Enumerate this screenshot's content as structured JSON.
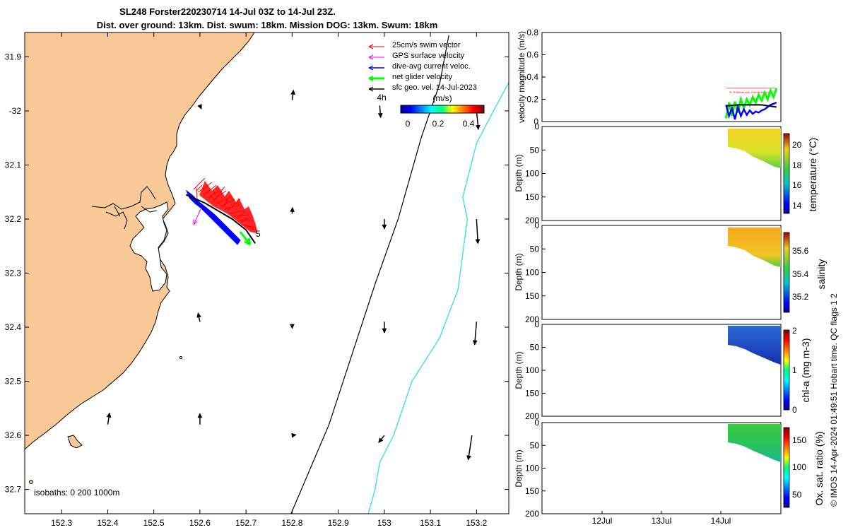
{
  "chart_data": [
    {
      "type": "map",
      "title_line1": "SL248 Forster220230714 14-Jul 03Z to 14-Jul 23Z.",
      "title_line2": "Dist. over ground: 13km. Dist. swum: 18km. Mission DOG: 13km. Swum: 18km",
      "xlim": [
        152.22,
        153.27
      ],
      "ylim": [
        -32.745,
        -31.855
      ],
      "x_ticks": [
        152.3,
        152.4,
        152.5,
        152.6,
        152.7,
        152.8,
        152.9,
        153,
        153.1,
        153.2
      ],
      "x_tick_labels": [
        "152.3",
        "152.4",
        "152.5",
        "152.6",
        "152.7",
        "152.8",
        "152.9",
        "153",
        "153.1",
        "153.2"
      ],
      "y_ticks": [
        -31.9,
        -32,
        -32.1,
        -32.2,
        -32.3,
        -32.4,
        -32.5,
        -32.6,
        -32.7
      ],
      "y_tick_labels": [
        "31.9",
        "-32",
        "32.1",
        "32.2",
        "32.3",
        "32.4",
        "32.5",
        "32.6",
        "32.7"
      ],
      "legend": {
        "placement": "top-right",
        "entries": [
          {
            "label": "25cm/s swim vector",
            "color": "#ff0000"
          },
          {
            "label": "GPS surface velocity",
            "color": "#ff00ff"
          },
          {
            "label": "dive-avg current veloc.",
            "color": "#0000ff"
          },
          {
            "label": "net glider velocity",
            "color": "#00ff00"
          },
          {
            "label": "sfc geo. vel. 14-Jul-2023",
            "color": "#000000"
          }
        ]
      },
      "colorbar": {
        "label": "(m/s)",
        "ticks": [
          0,
          0.2,
          0.4
        ],
        "tick_labels": [
          "0",
          "0.2",
          "0.4"
        ],
        "range": [
          -0.05,
          0.5
        ]
      },
      "time_marker": "4h",
      "end_marker": "5",
      "isobaths_label": "isobaths: 0   200  1000m",
      "isobath_200m": [
        [
          153.3,
          -31.9
        ],
        [
          153.24,
          -31.995
        ],
        [
          153.2,
          -32.06
        ],
        [
          153.17,
          -32.16
        ],
        [
          153.18,
          -32.2
        ],
        [
          153.16,
          -32.33
        ],
        [
          153.12,
          -32.42
        ],
        [
          153.06,
          -32.5
        ],
        [
          153.02,
          -32.6
        ],
        [
          152.99,
          -32.65
        ],
        [
          152.98,
          -32.7
        ],
        [
          152.96,
          -32.76
        ]
      ],
      "isobath_1000m": [
        [
          153.14,
          -31.86
        ],
        [
          153.12,
          -31.95
        ],
        [
          153.08,
          -32.05
        ],
        [
          153.03,
          -32.2
        ],
        [
          152.98,
          -32.32
        ],
        [
          152.93,
          -32.45
        ],
        [
          152.88,
          -32.58
        ],
        [
          152.83,
          -32.68
        ],
        [
          152.79,
          -32.76
        ]
      ],
      "geostrophic_arrows": [
        {
          "lon": 152.6,
          "lat": -31.99,
          "u": 0.003,
          "v": -0.006
        },
        {
          "lon": 152.8,
          "lat": -31.98,
          "u": 0.003,
          "v": 0.018
        },
        {
          "lon": 152.99,
          "lat": -31.99,
          "u": 0.002,
          "v": -0.022
        },
        {
          "lon": 153.2,
          "lat": -32.0,
          "u": 0.004,
          "v": -0.034
        },
        {
          "lon": 152.8,
          "lat": -32.19,
          "u": 0.001,
          "v": 0.011
        },
        {
          "lon": 153.0,
          "lat": -32.2,
          "u": 0.0,
          "v": -0.018
        },
        {
          "lon": 153.2,
          "lat": -32.2,
          "u": 0.003,
          "v": -0.045
        },
        {
          "lon": 152.6,
          "lat": -32.39,
          "u": -0.004,
          "v": 0.016
        },
        {
          "lon": 152.8,
          "lat": -32.4,
          "u": 0.0,
          "v": -0.002
        },
        {
          "lon": 153.0,
          "lat": -32.39,
          "u": 0.0,
          "v": -0.02
        },
        {
          "lon": 153.2,
          "lat": -32.39,
          "u": -0.004,
          "v": -0.042
        },
        {
          "lon": 152.4,
          "lat": -32.58,
          "u": 0.004,
          "v": 0.021
        },
        {
          "lon": 152.6,
          "lat": -32.58,
          "u": 0.0,
          "v": 0.02
        },
        {
          "lon": 152.8,
          "lat": -32.6,
          "u": 0.008,
          "v": 0.001
        },
        {
          "lon": 153.0,
          "lat": -32.6,
          "u": -0.012,
          "v": -0.013
        },
        {
          "lon": 153.19,
          "lat": -32.6,
          "u": -0.008,
          "v": -0.045
        }
      ],
      "glider_track": [
        [
          152.57,
          -32.155
        ],
        [
          152.61,
          -32.17
        ],
        [
          152.64,
          -32.185
        ],
        [
          152.67,
          -32.2
        ],
        [
          152.7,
          -32.22
        ],
        [
          152.72,
          -32.245
        ]
      ]
    },
    {
      "type": "line",
      "ylabel": "velocity magnitude (m/s)",
      "ylim": [
        0,
        0.8
      ],
      "y_ticks": [
        0,
        0.2,
        0.4,
        0.6,
        0.8
      ],
      "x_range_days": [
        "11-Jul",
        "15-Jul"
      ],
      "series": [
        {
          "color": "#ff0000",
          "x_day": [
            14.1,
            14.95
          ],
          "y": [
            0.3,
            0.3
          ]
        },
        {
          "color": "#00ff00",
          "x_day": [
            14.1,
            14.15,
            14.2,
            14.25,
            14.3,
            14.35,
            14.4,
            14.45,
            14.5,
            14.55,
            14.6,
            14.65,
            14.7,
            14.75,
            14.8,
            14.85,
            14.9,
            14.95
          ],
          "y": [
            0.03,
            0.17,
            0.05,
            0.18,
            0.08,
            0.2,
            0.12,
            0.2,
            0.15,
            0.22,
            0.17,
            0.24,
            0.19,
            0.26,
            0.2,
            0.28,
            0.22,
            0.3
          ]
        },
        {
          "color": "#0000ff",
          "x_day": [
            14.1,
            14.15,
            14.2,
            14.25,
            14.3,
            14.35,
            14.4,
            14.45,
            14.5,
            14.55,
            14.6,
            14.65,
            14.7,
            14.75,
            14.8,
            14.85,
            14.9,
            14.95
          ],
          "y": [
            0.15,
            0.05,
            0.12,
            0.02,
            0.13,
            0.05,
            0.11,
            0.06,
            0.1,
            0.07,
            0.09,
            0.08,
            0.1,
            0.11,
            0.13,
            0.15,
            0.16,
            0.17
          ]
        },
        {
          "color": "#000000",
          "x_day": [
            14.1,
            14.3,
            14.5,
            14.7,
            14.95
          ],
          "y": [
            0.14,
            0.15,
            0.15,
            0.15,
            0.13
          ]
        }
      ]
    },
    {
      "type": "heatmap",
      "ylabel": "Depth (m)",
      "cbar_label": "temperature (°C)",
      "cbar_range": [
        12.8,
        21.2
      ],
      "cbar_ticks": [
        14,
        16,
        18,
        20
      ],
      "ylim": [
        200,
        0
      ],
      "y_ticks": [
        0,
        50,
        100,
        150,
        200
      ],
      "values_range": [
        18.0,
        20.6
      ]
    },
    {
      "type": "heatmap",
      "ylabel": "Depth (m)",
      "cbar_label": "salinity",
      "cbar_range": [
        35.05,
        35.75
      ],
      "cbar_ticks": [
        35.2,
        35.4,
        35.6
      ],
      "ylim": [
        200,
        0
      ],
      "y_ticks": [
        0,
        50,
        100,
        150,
        200
      ],
      "values_range": [
        35.45,
        35.65
      ]
    },
    {
      "type": "heatmap",
      "ylabel": "Depth (m)",
      "cbar_label": "chl-a (mg m-3)",
      "cbar_range": [
        0,
        2
      ],
      "cbar_ticks": [
        0,
        1,
        2
      ],
      "ylim": [
        200,
        0
      ],
      "y_ticks": [
        0,
        50,
        100,
        150,
        200
      ],
      "values_range": [
        0.1,
        0.5
      ]
    },
    {
      "type": "heatmap",
      "ylabel": "Depth (m)",
      "cbar_label": "Ox. sat. ratio (%)",
      "cbar_range": [
        22,
        175
      ],
      "cbar_ticks": [
        50,
        100,
        150
      ],
      "ylim": [
        200,
        0
      ],
      "y_ticks": [
        0,
        50,
        100,
        150,
        200
      ],
      "values_range": [
        112,
        135
      ],
      "x_tick_labels": [
        "12Jul",
        "13Jul",
        "14Jul"
      ]
    }
  ],
  "side_note": "© IMOS 14-Apr-2024 01:49:51 Hobart time. QC flags 1  2",
  "tiny_red_text": "SL ZH4WHW MAX JUNHWHW(0)(0)",
  "colors": {
    "land": "#f8c896",
    "isobath_200": "#40e0e0",
    "swim": "#ff0000",
    "gps": "#ff00ff",
    "current": "#0000ff",
    "net": "#00ff00",
    "geo": "#000000"
  }
}
